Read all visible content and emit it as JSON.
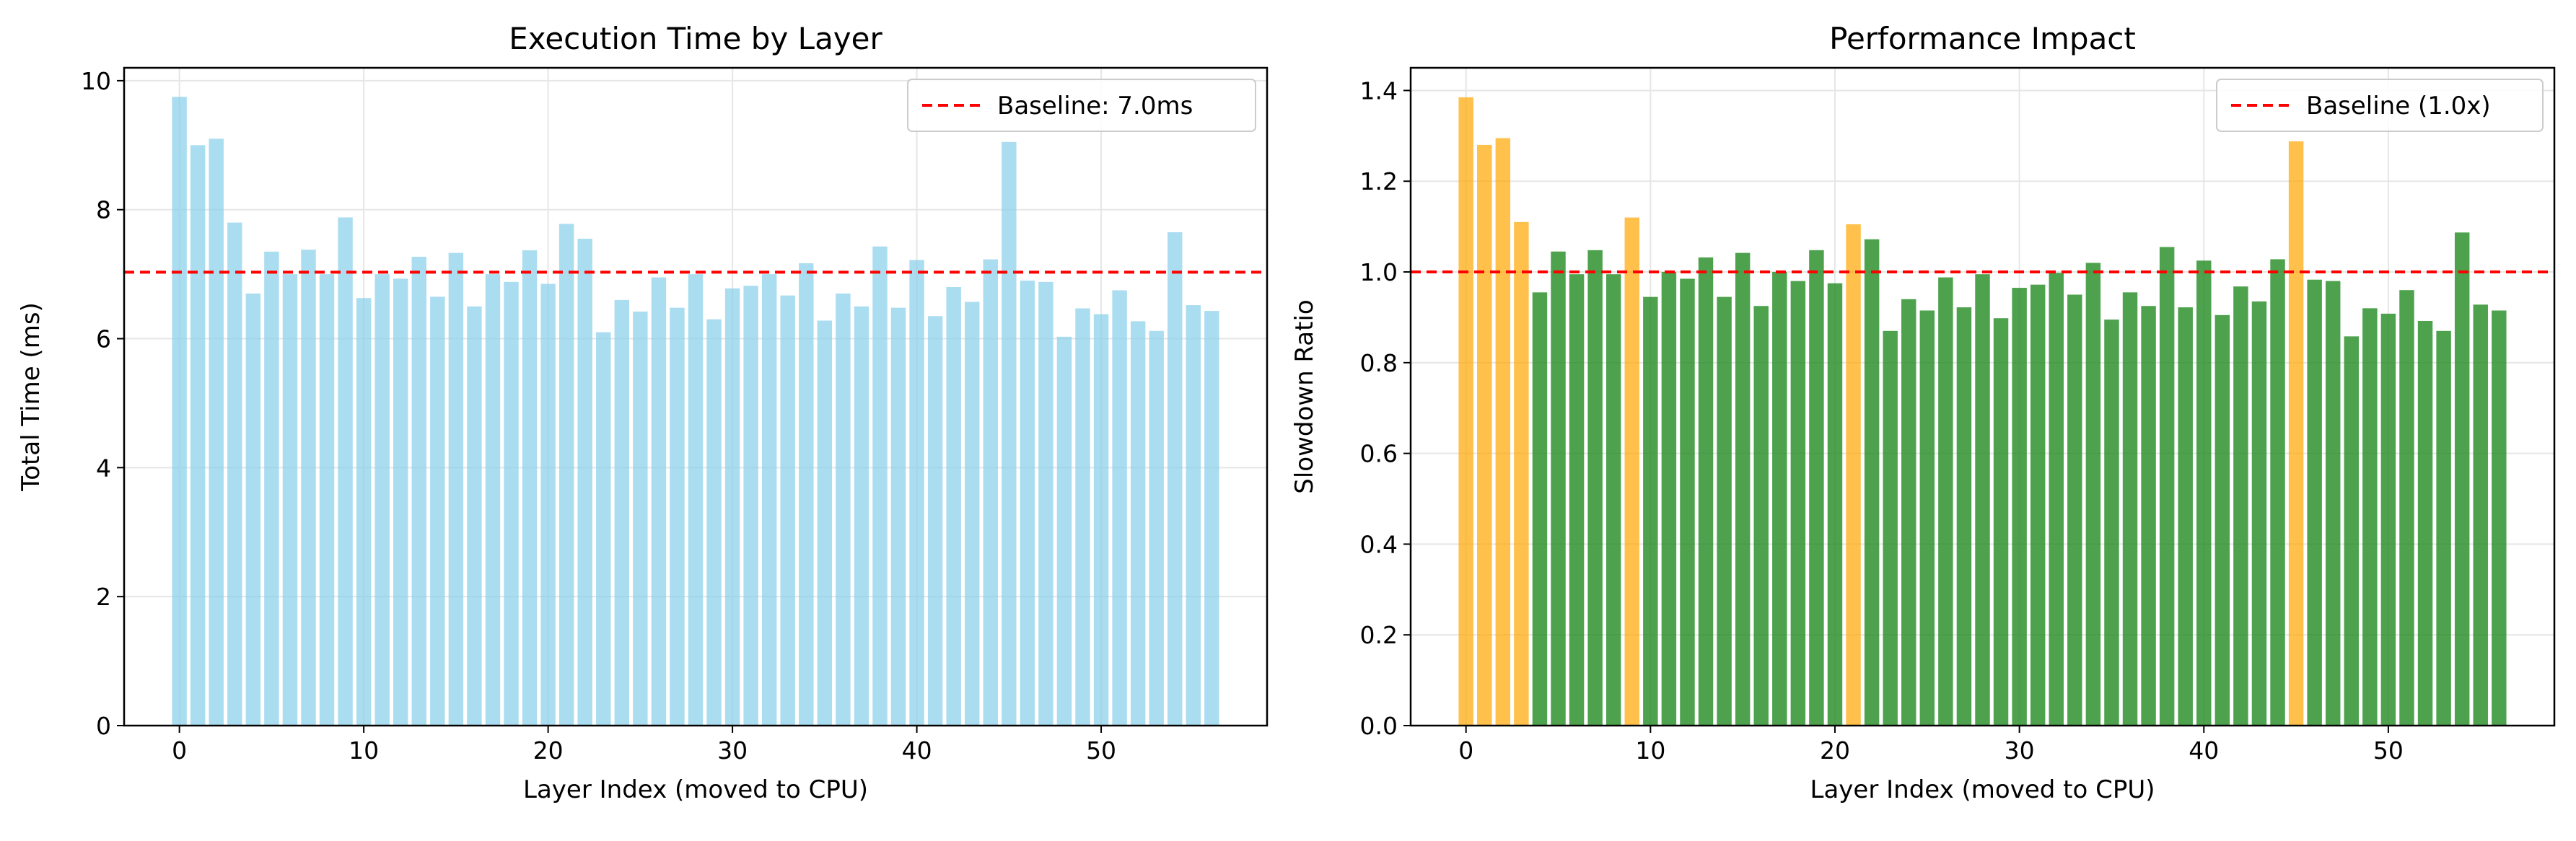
{
  "chart_data": [
    {
      "type": "bar",
      "title": "Execution Time by Layer",
      "xlabel": "Layer Index (moved to CPU)",
      "ylabel": "Total Time (ms)",
      "xlim": [
        -3,
        59
      ],
      "ylim": [
        0,
        10.2
      ],
      "x_ticks": [
        0,
        10,
        20,
        30,
        40,
        50
      ],
      "y_ticks": [
        0,
        2,
        4,
        6,
        8,
        10
      ],
      "grid": true,
      "legend_position": "top-right",
      "x": [
        0,
        1,
        2,
        3,
        4,
        5,
        6,
        7,
        8,
        9,
        10,
        11,
        12,
        13,
        14,
        15,
        16,
        17,
        18,
        19,
        20,
        21,
        22,
        23,
        24,
        25,
        26,
        27,
        28,
        29,
        30,
        31,
        32,
        33,
        34,
        35,
        36,
        37,
        38,
        39,
        40,
        41,
        42,
        43,
        44,
        45,
        46,
        47,
        48,
        49,
        50,
        51,
        52,
        53,
        54,
        55,
        56
      ],
      "values": [
        9.75,
        9.0,
        9.1,
        7.8,
        6.7,
        7.35,
        7.0,
        7.38,
        7.0,
        7.88,
        6.63,
        7.0,
        6.93,
        7.27,
        6.65,
        7.33,
        6.5,
        7.0,
        6.88,
        7.37,
        6.85,
        7.78,
        7.55,
        6.1,
        6.6,
        6.42,
        6.95,
        6.48,
        7.0,
        6.3,
        6.78,
        6.82,
        7.0,
        6.67,
        7.17,
        6.28,
        6.7,
        6.5,
        7.43,
        6.48,
        7.22,
        6.35,
        6.8,
        6.57,
        7.23,
        9.05,
        6.9,
        6.88,
        6.03,
        6.47,
        6.38,
        6.75,
        6.27,
        6.12,
        7.65,
        6.52,
        6.43
      ],
      "bar_color": "#87CEEB",
      "reference_line": {
        "label": "Baseline: 7.0ms",
        "value": 7.03,
        "color": "#FF0000",
        "style": "dashed"
      }
    },
    {
      "type": "bar",
      "title": "Performance Impact",
      "xlabel": "Layer Index (moved to CPU)",
      "ylabel": "Slowdown Ratio",
      "xlim": [
        -3,
        59
      ],
      "ylim": [
        0,
        1.45
      ],
      "x_ticks": [
        0,
        10,
        20,
        30,
        40,
        50
      ],
      "y_ticks": [
        0.0,
        0.2,
        0.4,
        0.6,
        0.8,
        1.0,
        1.2,
        1.4
      ],
      "y_tick_format": 1,
      "grid": true,
      "legend_position": "top-right",
      "x": [
        0,
        1,
        2,
        3,
        4,
        5,
        6,
        7,
        8,
        9,
        10,
        11,
        12,
        13,
        14,
        15,
        16,
        17,
        18,
        19,
        20,
        21,
        22,
        23,
        24,
        25,
        26,
        27,
        28,
        29,
        30,
        31,
        32,
        33,
        34,
        35,
        36,
        37,
        38,
        39,
        40,
        41,
        42,
        43,
        44,
        45,
        46,
        47,
        48,
        49,
        50,
        51,
        52,
        53,
        54,
        55,
        56
      ],
      "values": [
        1.385,
        1.28,
        1.295,
        1.11,
        0.955,
        1.045,
        0.995,
        1.048,
        0.995,
        1.12,
        0.945,
        1.0,
        0.985,
        1.032,
        0.945,
        1.042,
        0.925,
        1.0,
        0.98,
        1.048,
        0.975,
        1.105,
        1.072,
        0.87,
        0.94,
        0.915,
        0.988,
        0.922,
        0.995,
        0.898,
        0.965,
        0.972,
        0.998,
        0.95,
        1.02,
        0.895,
        0.955,
        0.925,
        1.055,
        0.922,
        1.025,
        0.905,
        0.968,
        0.935,
        1.028,
        1.288,
        0.983,
        0.98,
        0.858,
        0.92,
        0.908,
        0.96,
        0.892,
        0.87,
        1.087,
        0.928,
        0.915
      ],
      "highlight_threshold": 1.1,
      "bar_color": "#228B22",
      "highlight_color": "#FFA500",
      "reference_line": {
        "label": "Baseline (1.0x)",
        "value": 1.0,
        "color": "#FF0000",
        "style": "dashed"
      }
    }
  ]
}
